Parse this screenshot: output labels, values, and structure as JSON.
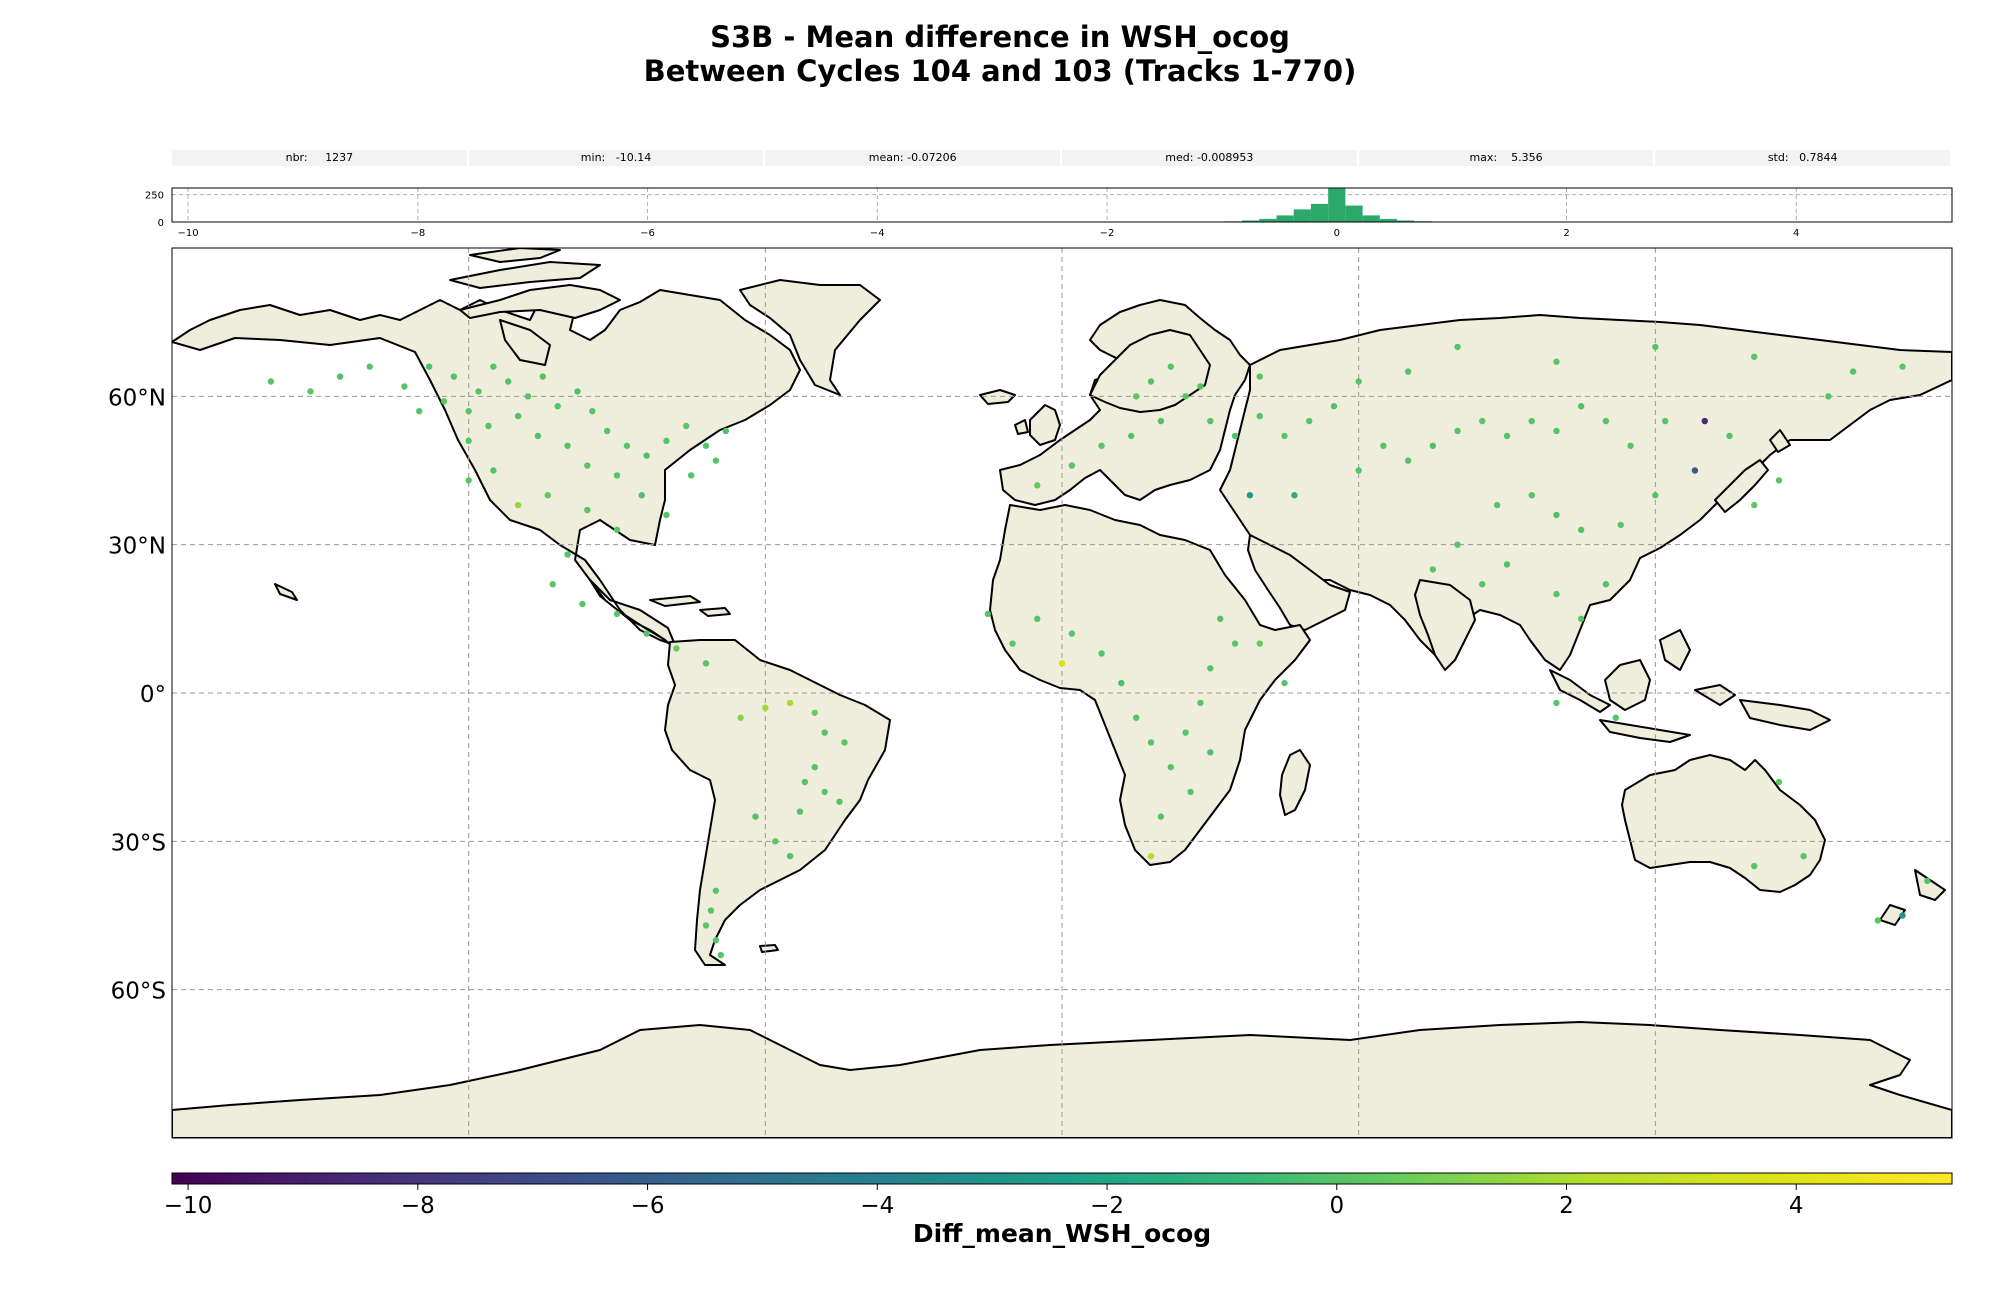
{
  "header": {
    "title_line1": "S3B - Mean difference in WSH_ocog",
    "title_line2": "Between Cycles 104 and 103 (Tracks 1-770)"
  },
  "stats": [
    {
      "label": "nbr:",
      "value": "1237"
    },
    {
      "label": "min:",
      "value": "-10.14"
    },
    {
      "label": "mean:",
      "value": "-0.07206"
    },
    {
      "label": "med:",
      "value": "-0.008953"
    },
    {
      "label": "max:",
      "value": "5.356"
    },
    {
      "label": "std:",
      "value": "0.7844"
    }
  ],
  "chart_data": [
    {
      "type": "bar",
      "name": "histogram",
      "xlim": [
        -10.14,
        5.356
      ],
      "ylim": [
        0,
        310
      ],
      "xticks": [
        "−10",
        "−8",
        "−6",
        "−4",
        "−2",
        "0",
        "2",
        "4"
      ],
      "xtick_values": [
        -10,
        -8,
        -6,
        -4,
        -2,
        0,
        2,
        4
      ],
      "yticks": [
        "0",
        "250"
      ],
      "ytick_values": [
        0,
        250
      ],
      "bin_width": 0.15,
      "bins": [
        {
          "x": -1.2,
          "y": 2
        },
        {
          "x": -1.05,
          "y": 3
        },
        {
          "x": -0.9,
          "y": 6
        },
        {
          "x": -0.75,
          "y": 14
        },
        {
          "x": -0.6,
          "y": 28
        },
        {
          "x": -0.45,
          "y": 60
        },
        {
          "x": -0.3,
          "y": 115
        },
        {
          "x": -0.15,
          "y": 165
        },
        {
          "x": 0.0,
          "y": 305
        },
        {
          "x": 0.15,
          "y": 150
        },
        {
          "x": 0.3,
          "y": 60
        },
        {
          "x": 0.45,
          "y": 28
        },
        {
          "x": 0.6,
          "y": 14
        },
        {
          "x": 0.75,
          "y": 7
        },
        {
          "x": 0.9,
          "y": 3
        },
        {
          "x": 1.05,
          "y": 2
        },
        {
          "x": 1.2,
          "y": 1
        }
      ],
      "bar_color": "#2ca86b",
      "grid": true
    },
    {
      "type": "scatter",
      "name": "map",
      "projection": "PlateCarree",
      "xlim": [
        -180,
        180
      ],
      "ylim": [
        -90,
        90
      ],
      "yticks": [
        "60°N",
        "30°N",
        "0°",
        "30°S",
        "60°S"
      ],
      "ytick_values": [
        60,
        30,
        0,
        -30,
        -60
      ],
      "xgrid_values": [
        -120,
        -60,
        0,
        60,
        120
      ],
      "land_color": "#efeedc",
      "coast_color": "#000000",
      "grid": true,
      "points": [
        {
          "lon": -160,
          "lat": 63,
          "v": 0
        },
        {
          "lon": -152,
          "lat": 61,
          "v": 0.2
        },
        {
          "lon": -146,
          "lat": 64,
          "v": -0.1
        },
        {
          "lon": -140,
          "lat": 66,
          "v": 0.1
        },
        {
          "lon": -133,
          "lat": 62,
          "v": 0
        },
        {
          "lon": -128,
          "lat": 66,
          "v": -0.2
        },
        {
          "lon": -123,
          "lat": 64,
          "v": 0
        },
        {
          "lon": -118,
          "lat": 61,
          "v": 0.1
        },
        {
          "lon": -115,
          "lat": 66,
          "v": 0
        },
        {
          "lon": -112,
          "lat": 63,
          "v": -0.1
        },
        {
          "lon": -108,
          "lat": 60,
          "v": 0
        },
        {
          "lon": -105,
          "lat": 64,
          "v": 0.1
        },
        {
          "lon": -102,
          "lat": 58,
          "v": 0
        },
        {
          "lon": -98,
          "lat": 61,
          "v": -0.2
        },
        {
          "lon": -95,
          "lat": 57,
          "v": 0
        },
        {
          "lon": -92,
          "lat": 53,
          "v": 0.1
        },
        {
          "lon": -88,
          "lat": 50,
          "v": 0
        },
        {
          "lon": -84,
          "lat": 48,
          "v": -0.1
        },
        {
          "lon": -80,
          "lat": 51,
          "v": 0
        },
        {
          "lon": -76,
          "lat": 54,
          "v": 0.2
        },
        {
          "lon": -72,
          "lat": 50,
          "v": 0
        },
        {
          "lon": -68,
          "lat": 53,
          "v": -0.1
        },
        {
          "lon": -110,
          "lat": 56,
          "v": 0
        },
        {
          "lon": -116,
          "lat": 54,
          "v": 0.1
        },
        {
          "lon": -120,
          "lat": 51,
          "v": 0
        },
        {
          "lon": -106,
          "lat": 52,
          "v": -0.1
        },
        {
          "lon": -100,
          "lat": 50,
          "v": 0
        },
        {
          "lon": -96,
          "lat": 46,
          "v": 0.1
        },
        {
          "lon": -90,
          "lat": 44,
          "v": 0
        },
        {
          "lon": -85,
          "lat": 40,
          "v": -0.2
        },
        {
          "lon": -80,
          "lat": 36,
          "v": 0
        },
        {
          "lon": -90,
          "lat": 33,
          "v": 0.1
        },
        {
          "lon": -96,
          "lat": 37,
          "v": 0
        },
        {
          "lon": -104,
          "lat": 40,
          "v": 0.3
        },
        {
          "lon": -110,
          "lat": 38,
          "v": 1.5
        },
        {
          "lon": -115,
          "lat": 45,
          "v": 0
        },
        {
          "lon": -120,
          "lat": 43,
          "v": 0.1
        },
        {
          "lon": -100,
          "lat": 28,
          "v": 0
        },
        {
          "lon": -103,
          "lat": 22,
          "v": 0.2
        },
        {
          "lon": -97,
          "lat": 18,
          "v": 0
        },
        {
          "lon": -90,
          "lat": 16,
          "v": 0.1
        },
        {
          "lon": -84,
          "lat": 12,
          "v": 0
        },
        {
          "lon": -78,
          "lat": 9,
          "v": 0.5
        },
        {
          "lon": -72,
          "lat": 6,
          "v": 0
        },
        {
          "lon": -60,
          "lat": -3,
          "v": 1.8
        },
        {
          "lon": -55,
          "lat": -2,
          "v": 2.0
        },
        {
          "lon": -50,
          "lat": -4,
          "v": 0.6
        },
        {
          "lon": -65,
          "lat": -5,
          "v": 1.2
        },
        {
          "lon": -48,
          "lat": -8,
          "v": 0
        },
        {
          "lon": -44,
          "lat": -10,
          "v": 0.1
        },
        {
          "lon": -52,
          "lat": -18,
          "v": 0
        },
        {
          "lon": -48,
          "lat": -20,
          "v": 0.1
        },
        {
          "lon": -45,
          "lat": -22,
          "v": 0
        },
        {
          "lon": -53,
          "lat": -24,
          "v": -0.1
        },
        {
          "lon": -50,
          "lat": -15,
          "v": 0
        },
        {
          "lon": -58,
          "lat": -30,
          "v": 0.2
        },
        {
          "lon": -55,
          "lat": -33,
          "v": 0
        },
        {
          "lon": -62,
          "lat": -25,
          "v": 0
        },
        {
          "lon": -70,
          "lat": -40,
          "v": 0.1
        },
        {
          "lon": -71,
          "lat": -44,
          "v": 0
        },
        {
          "lon": -72,
          "lat": -47,
          "v": 0.2
        },
        {
          "lon": -70,
          "lat": -50,
          "v": 0
        },
        {
          "lon": -69,
          "lat": -53,
          "v": 0.1
        },
        {
          "lon": -5,
          "lat": 42,
          "v": 0.4
        },
        {
          "lon": 2,
          "lat": 46,
          "v": 0
        },
        {
          "lon": 8,
          "lat": 50,
          "v": 0.1
        },
        {
          "lon": 14,
          "lat": 52,
          "v": 0
        },
        {
          "lon": 20,
          "lat": 55,
          "v": -0.1
        },
        {
          "lon": 25,
          "lat": 60,
          "v": 0
        },
        {
          "lon": 18,
          "lat": 63,
          "v": 0.1
        },
        {
          "lon": 28,
          "lat": 62,
          "v": 0
        },
        {
          "lon": 22,
          "lat": 66,
          "v": 0
        },
        {
          "lon": 15,
          "lat": 60,
          "v": 0.2
        },
        {
          "lon": 30,
          "lat": 55,
          "v": 0
        },
        {
          "lon": 35,
          "lat": 52,
          "v": -0.2
        },
        {
          "lon": 40,
          "lat": 56,
          "v": 0
        },
        {
          "lon": 45,
          "lat": 52,
          "v": 0.1
        },
        {
          "lon": 50,
          "lat": 55,
          "v": 0
        },
        {
          "lon": 55,
          "lat": 58,
          "v": -0.1
        },
        {
          "lon": 38,
          "lat": 40,
          "v": -2.5
        },
        {
          "lon": 47,
          "lat": 40,
          "v": -1.5
        },
        {
          "lon": 60,
          "lat": 45,
          "v": 0
        },
        {
          "lon": 65,
          "lat": 50,
          "v": 0.1
        },
        {
          "lon": 70,
          "lat": 47,
          "v": 0
        },
        {
          "lon": 75,
          "lat": 50,
          "v": -0.1
        },
        {
          "lon": 80,
          "lat": 53,
          "v": 0
        },
        {
          "lon": 85,
          "lat": 55,
          "v": 0.2
        },
        {
          "lon": 90,
          "lat": 52,
          "v": 0
        },
        {
          "lon": 95,
          "lat": 55,
          "v": 0.1
        },
        {
          "lon": 100,
          "lat": 53,
          "v": 0
        },
        {
          "lon": 105,
          "lat": 58,
          "v": -0.1
        },
        {
          "lon": 110,
          "lat": 55,
          "v": 0
        },
        {
          "lon": 115,
          "lat": 50,
          "v": 0.1
        },
        {
          "lon": 122,
          "lat": 55,
          "v": 0
        },
        {
          "lon": 130,
          "lat": 55,
          "v": -8.5
        },
        {
          "lon": 135,
          "lat": 52,
          "v": 0
        },
        {
          "lon": 128,
          "lat": 45,
          "v": -6.0
        },
        {
          "lon": 120,
          "lat": 40,
          "v": 0
        },
        {
          "lon": 113,
          "lat": 34,
          "v": 0.1
        },
        {
          "lon": 105,
          "lat": 33,
          "v": 0
        },
        {
          "lon": 100,
          "lat": 36,
          "v": -0.1
        },
        {
          "lon": 95,
          "lat": 40,
          "v": 0
        },
        {
          "lon": 88,
          "lat": 38,
          "v": 0.1
        },
        {
          "lon": 80,
          "lat": 30,
          "v": 0
        },
        {
          "lon": 75,
          "lat": 25,
          "v": 0.2
        },
        {
          "lon": 85,
          "lat": 22,
          "v": 0
        },
        {
          "lon": 90,
          "lat": 26,
          "v": -0.1
        },
        {
          "lon": 100,
          "lat": 20,
          "v": 0
        },
        {
          "lon": 105,
          "lat": 15,
          "v": 0.1
        },
        {
          "lon": 110,
          "lat": 22,
          "v": 0
        },
        {
          "lon": 140,
          "lat": 38,
          "v": 0.3
        },
        {
          "lon": 145,
          "lat": 43,
          "v": 0
        },
        {
          "lon": 155,
          "lat": 60,
          "v": 0.1
        },
        {
          "lon": 160,
          "lat": 65,
          "v": 0
        },
        {
          "lon": 170,
          "lat": 66,
          "v": 0.2
        },
        {
          "lon": 140,
          "lat": 68,
          "v": 0
        },
        {
          "lon": 120,
          "lat": 70,
          "v": 0
        },
        {
          "lon": 100,
          "lat": 67,
          "v": 0.1
        },
        {
          "lon": 80,
          "lat": 70,
          "v": 0
        },
        {
          "lon": 70,
          "lat": 65,
          "v": -0.1
        },
        {
          "lon": 60,
          "lat": 63,
          "v": 0
        },
        {
          "lon": 40,
          "lat": 64,
          "v": 0.1
        },
        {
          "lon": 32,
          "lat": 15,
          "v": 0
        },
        {
          "lon": 35,
          "lat": 10,
          "v": 0.2
        },
        {
          "lon": 30,
          "lat": 5,
          "v": 0
        },
        {
          "lon": 28,
          "lat": -2,
          "v": 0.1
        },
        {
          "lon": 25,
          "lat": -8,
          "v": 0
        },
        {
          "lon": 30,
          "lat": -12,
          "v": -0.1
        },
        {
          "lon": 22,
          "lat": -15,
          "v": 0
        },
        {
          "lon": 18,
          "lat": -10,
          "v": 0.1
        },
        {
          "lon": 15,
          "lat": -5,
          "v": 0
        },
        {
          "lon": 12,
          "lat": 2,
          "v": -0.3
        },
        {
          "lon": 8,
          "lat": 8,
          "v": 0
        },
        {
          "lon": 2,
          "lat": 12,
          "v": 0.1
        },
        {
          "lon": -5,
          "lat": 15,
          "v": 0
        },
        {
          "lon": -10,
          "lat": 10,
          "v": 0.2
        },
        {
          "lon": -15,
          "lat": 16,
          "v": 0
        },
        {
          "lon": 0,
          "lat": 6,
          "v": 3.5
        },
        {
          "lon": 20,
          "lat": -25,
          "v": 0
        },
        {
          "lon": 26,
          "lat": -20,
          "v": 0.1
        },
        {
          "lon": 18,
          "lat": -33,
          "v": 2.2
        },
        {
          "lon": 40,
          "lat": 10,
          "v": 0.5
        },
        {
          "lon": 45,
          "lat": 2,
          "v": 0
        },
        {
          "lon": 100,
          "lat": -2,
          "v": 0.1
        },
        {
          "lon": 112,
          "lat": -5,
          "v": 0
        },
        {
          "lon": 145,
          "lat": -18,
          "v": 0.2
        },
        {
          "lon": 150,
          "lat": -33,
          "v": 0
        },
        {
          "lon": 140,
          "lat": -35,
          "v": 0.1
        },
        {
          "lon": 175,
          "lat": -38,
          "v": 0
        },
        {
          "lon": 170,
          "lat": -45,
          "v": -3.0
        },
        {
          "lon": 165,
          "lat": -46,
          "v": 0.1
        },
        {
          "lon": -75,
          "lat": 44,
          "v": 0
        },
        {
          "lon": -70,
          "lat": 47,
          "v": 0.1
        },
        {
          "lon": -120,
          "lat": 57,
          "v": 0
        },
        {
          "lon": -125,
          "lat": 59,
          "v": 0.2
        },
        {
          "lon": -130,
          "lat": 57,
          "v": 0
        }
      ]
    },
    {
      "type": "heatmap",
      "name": "colorbar",
      "colormap": "viridis",
      "range": [
        -10.14,
        5.356
      ],
      "ticks": [
        "−10",
        "−8",
        "−6",
        "−4",
        "−2",
        "0",
        "2",
        "4"
      ],
      "tick_values": [
        -10,
        -8,
        -6,
        -4,
        -2,
        0,
        2,
        4
      ],
      "label": "Diff_mean_WSH_ocog"
    }
  ]
}
